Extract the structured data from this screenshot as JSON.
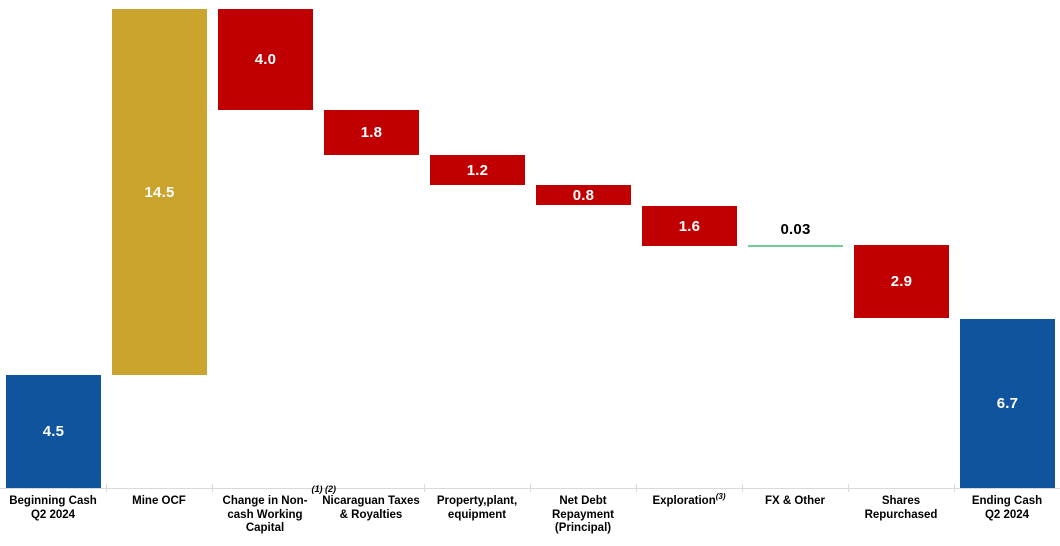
{
  "chart_data": {
    "type": "bar",
    "subtype": "waterfall",
    "title": "",
    "xlabel": "",
    "ylabel": "",
    "ylim": [
      0,
      19
    ],
    "grid": false,
    "legend": false,
    "axis_line_color": "#d9d9d9",
    "categories": [
      "Beginning Cash Q2 2024",
      "Mine OCF",
      "Change in Non-cash Working Capital",
      "Nicaraguan Taxes & Royalties",
      "Property,plant, equipment",
      "Net Debt Repayment (Principal)",
      "Exploration",
      "FX & Other",
      "Shares Repurchased",
      "Ending Cash Q2 2024"
    ],
    "items": [
      {
        "name": "Beginning Cash Q2 2024",
        "label_lines": [
          "Beginning Cash",
          "Q2 2024"
        ],
        "kind": "total",
        "value": 4.5,
        "display": "4.5",
        "color": "#10549d",
        "value_color": "#ffffff",
        "render": "bar"
      },
      {
        "name": "Mine OCF",
        "label_lines": [
          "Mine OCF"
        ],
        "kind": "delta",
        "value": 14.5,
        "display": "14.5",
        "color": "#cba42e",
        "value_color": "#ffffff",
        "render": "bar"
      },
      {
        "name": "Change in Non-cash Working Capital",
        "label_lines": [
          "Change in Non-",
          "cash Working",
          "Capital"
        ],
        "kind": "delta",
        "value": -4.0,
        "display": "4.0",
        "color": "#c00000",
        "value_color": "#ffffff",
        "render": "bar",
        "footnote_above": "(1) (2)"
      },
      {
        "name": "Nicaraguan Taxes & Royalties",
        "label_lines": [
          "Nicaraguan Taxes",
          "& Royalties"
        ],
        "kind": "delta",
        "value": -1.8,
        "display": "1.8",
        "color": "#c00000",
        "value_color": "#ffffff",
        "render": "bar"
      },
      {
        "name": "Property,plant, equipment",
        "label_lines": [
          "Property,plant,",
          "equipment"
        ],
        "kind": "delta",
        "value": -1.2,
        "display": "1.2",
        "color": "#c00000",
        "value_color": "#ffffff",
        "render": "bar"
      },
      {
        "name": "Net Debt Repayment (Principal)",
        "label_lines": [
          "Net Debt",
          "Repayment",
          "(Principal)"
        ],
        "kind": "delta",
        "value": -0.8,
        "display": "0.8",
        "color": "#c00000",
        "value_color": "#ffffff",
        "render": "bar"
      },
      {
        "name": "Exploration",
        "label_lines": [
          "Exploration"
        ],
        "label_sup": "(3)",
        "kind": "delta",
        "value": -1.6,
        "display": "1.6",
        "color": "#c00000",
        "value_color": "#ffffff",
        "render": "bar"
      },
      {
        "name": "FX & Other",
        "label_lines": [
          "FX & Other"
        ],
        "kind": "delta",
        "value": 0.03,
        "display": "0.03",
        "color": "#70cd96",
        "value_color": "#000000",
        "render": "line"
      },
      {
        "name": "Shares Repurchased",
        "label_lines": [
          "Shares",
          "Repurchased"
        ],
        "kind": "delta",
        "value": -2.9,
        "display": "2.9",
        "color": "#c00000",
        "value_color": "#ffffff",
        "render": "bar"
      },
      {
        "name": "Ending Cash Q2 2024",
        "label_lines": [
          "Ending Cash",
          "Q2 2024"
        ],
        "kind": "total",
        "value": 6.7,
        "display": "6.7",
        "color": "#10549d",
        "value_color": "#ffffff",
        "render": "bar"
      }
    ]
  },
  "colors": {
    "start_end_bar": "#10549d",
    "increase_bar": "#cba42e",
    "decrease_bar": "#c00000",
    "near_zero_connector": "#70cd96",
    "axis_line": "#d9d9d9",
    "background": "#ffffff"
  }
}
